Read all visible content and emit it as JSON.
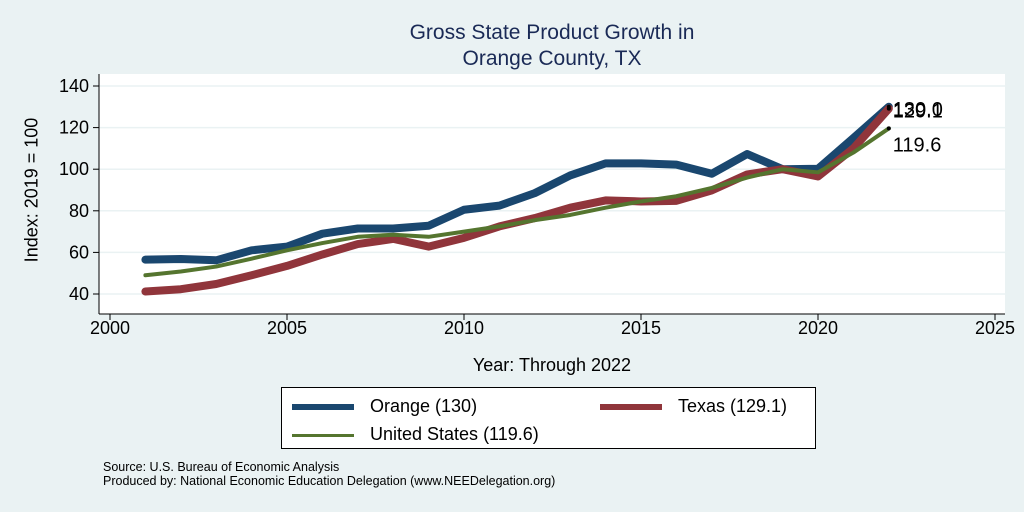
{
  "chart_data": {
    "type": "line",
    "title": [
      "Gross State Product Growth in",
      "Orange County, TX"
    ],
    "xlabel": "Year: Through 2022",
    "ylabel": "Index: 2019 = 100",
    "xlim": [
      1999.5,
      2025.5
    ],
    "ylim": [
      35,
      145
    ],
    "xticks": [
      2000,
      2005,
      2010,
      2015,
      2020,
      2025
    ],
    "yticks": [
      40,
      60,
      80,
      100,
      120,
      140
    ],
    "grid": true,
    "x": [
      2001,
      2002,
      2003,
      2004,
      2005,
      2006,
      2007,
      2008,
      2009,
      2010,
      2011,
      2012,
      2013,
      2014,
      2015,
      2016,
      2017,
      2018,
      2019,
      2020,
      2021,
      2022
    ],
    "series": [
      {
        "name": "Orange",
        "color": "#1a476f",
        "width": "thick",
        "values": [
          56.5,
          56.8,
          56.2,
          61.0,
          62.8,
          69.0,
          71.5,
          71.5,
          72.8,
          80.5,
          82.5,
          88.5,
          97.0,
          102.8,
          102.8,
          102.2,
          97.8,
          107.3,
          100.0,
          100.2,
          115.0,
          130.0
        ],
        "end_label": "130.0"
      },
      {
        "name": "Texas",
        "color": "#90353b",
        "width": "thick",
        "values": [
          41.2,
          42.3,
          44.8,
          49.0,
          53.5,
          59.0,
          64.0,
          66.5,
          62.8,
          67.0,
          72.5,
          76.5,
          81.5,
          85.0,
          84.5,
          84.8,
          89.8,
          97.5,
          100.0,
          96.5,
          110.0,
          129.1
        ],
        "end_label": "129.1"
      },
      {
        "name": "United States",
        "color": "#55752f",
        "width": "thin",
        "values": [
          49.0,
          50.8,
          53.2,
          57.0,
          61.0,
          64.5,
          67.5,
          68.5,
          67.5,
          70.0,
          72.5,
          75.5,
          78.0,
          81.5,
          84.5,
          87.0,
          91.0,
          96.0,
          100.0,
          98.5,
          108.0,
          119.6
        ],
        "end_label": "119.6"
      }
    ],
    "legend": {
      "placement": "bottom-center",
      "entries": [
        "Orange  (130)",
        "Texas (129.1)",
        "United States (119.6)"
      ]
    }
  },
  "footer": {
    "source": "Source: U.S. Bureau of Economic Analysis",
    "producer": "Produced by: National Economic Education Delegation (www.NEEDelegation.org)"
  }
}
